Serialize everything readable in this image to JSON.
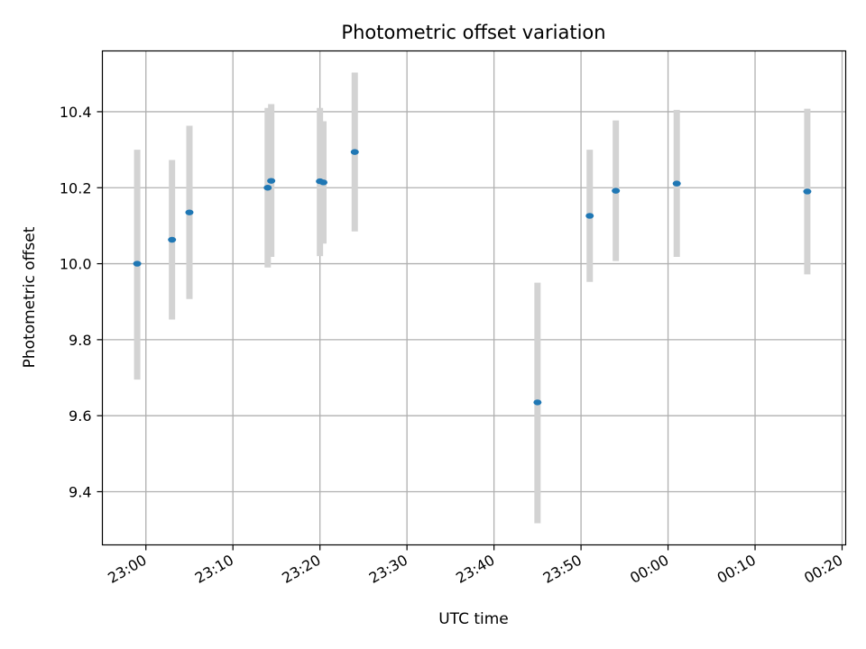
{
  "chart_data": {
    "type": "scatter",
    "title": "Photometric offset variation",
    "xlabel": "UTC time",
    "ylabel": "Photometric offset",
    "x_unit": "UTC clock time (HH:MM), spanning midnight",
    "xlim": [
      "22:55",
      "00:20"
    ],
    "ylim": [
      9.26,
      10.56
    ],
    "x_ticks": [
      "23:00",
      "23:10",
      "23:20",
      "23:30",
      "23:40",
      "23:50",
      "00:00",
      "00:10",
      "00:20"
    ],
    "y_ticks": [
      "9.4",
      "9.6",
      "9.8",
      "10.0",
      "10.2",
      "10.4"
    ],
    "grid": true,
    "colors": {
      "marker": "#1f77b4",
      "errorbar": "#d3d3d3",
      "grid": "#b0b0b0"
    },
    "points": [
      {
        "x": "22:59",
        "y": 10.0,
        "yerr_low": 9.695,
        "yerr_high": 10.3
      },
      {
        "x": "23:03",
        "y": 10.063,
        "yerr_low": 9.853,
        "yerr_high": 10.273
      },
      {
        "x": "23:05",
        "y": 10.135,
        "yerr_low": 9.907,
        "yerr_high": 10.363
      },
      {
        "x": "23:14",
        "y": 10.2,
        "yerr_low": 9.99,
        "yerr_high": 10.41
      },
      {
        "x": "23:14",
        "y": 10.218,
        "yerr_low": 10.018,
        "yerr_high": 10.42
      },
      {
        "x": "23:20",
        "y": 10.217,
        "yerr_low": 10.02,
        "yerr_high": 10.41
      },
      {
        "x": "23:20",
        "y": 10.214,
        "yerr_low": 10.053,
        "yerr_high": 10.375
      },
      {
        "x": "23:24",
        "y": 10.294,
        "yerr_low": 10.085,
        "yerr_high": 10.503
      },
      {
        "x": "23:45",
        "y": 9.635,
        "yerr_low": 9.317,
        "yerr_high": 9.95
      },
      {
        "x": "23:51",
        "y": 10.126,
        "yerr_low": 9.952,
        "yerr_high": 10.3
      },
      {
        "x": "23:54",
        "y": 10.192,
        "yerr_low": 10.007,
        "yerr_high": 10.377
      },
      {
        "x": "00:01",
        "y": 10.211,
        "yerr_low": 10.018,
        "yerr_high": 10.405
      },
      {
        "x": "00:16",
        "y": 10.19,
        "yerr_low": 9.972,
        "yerr_high": 10.408
      }
    ]
  }
}
